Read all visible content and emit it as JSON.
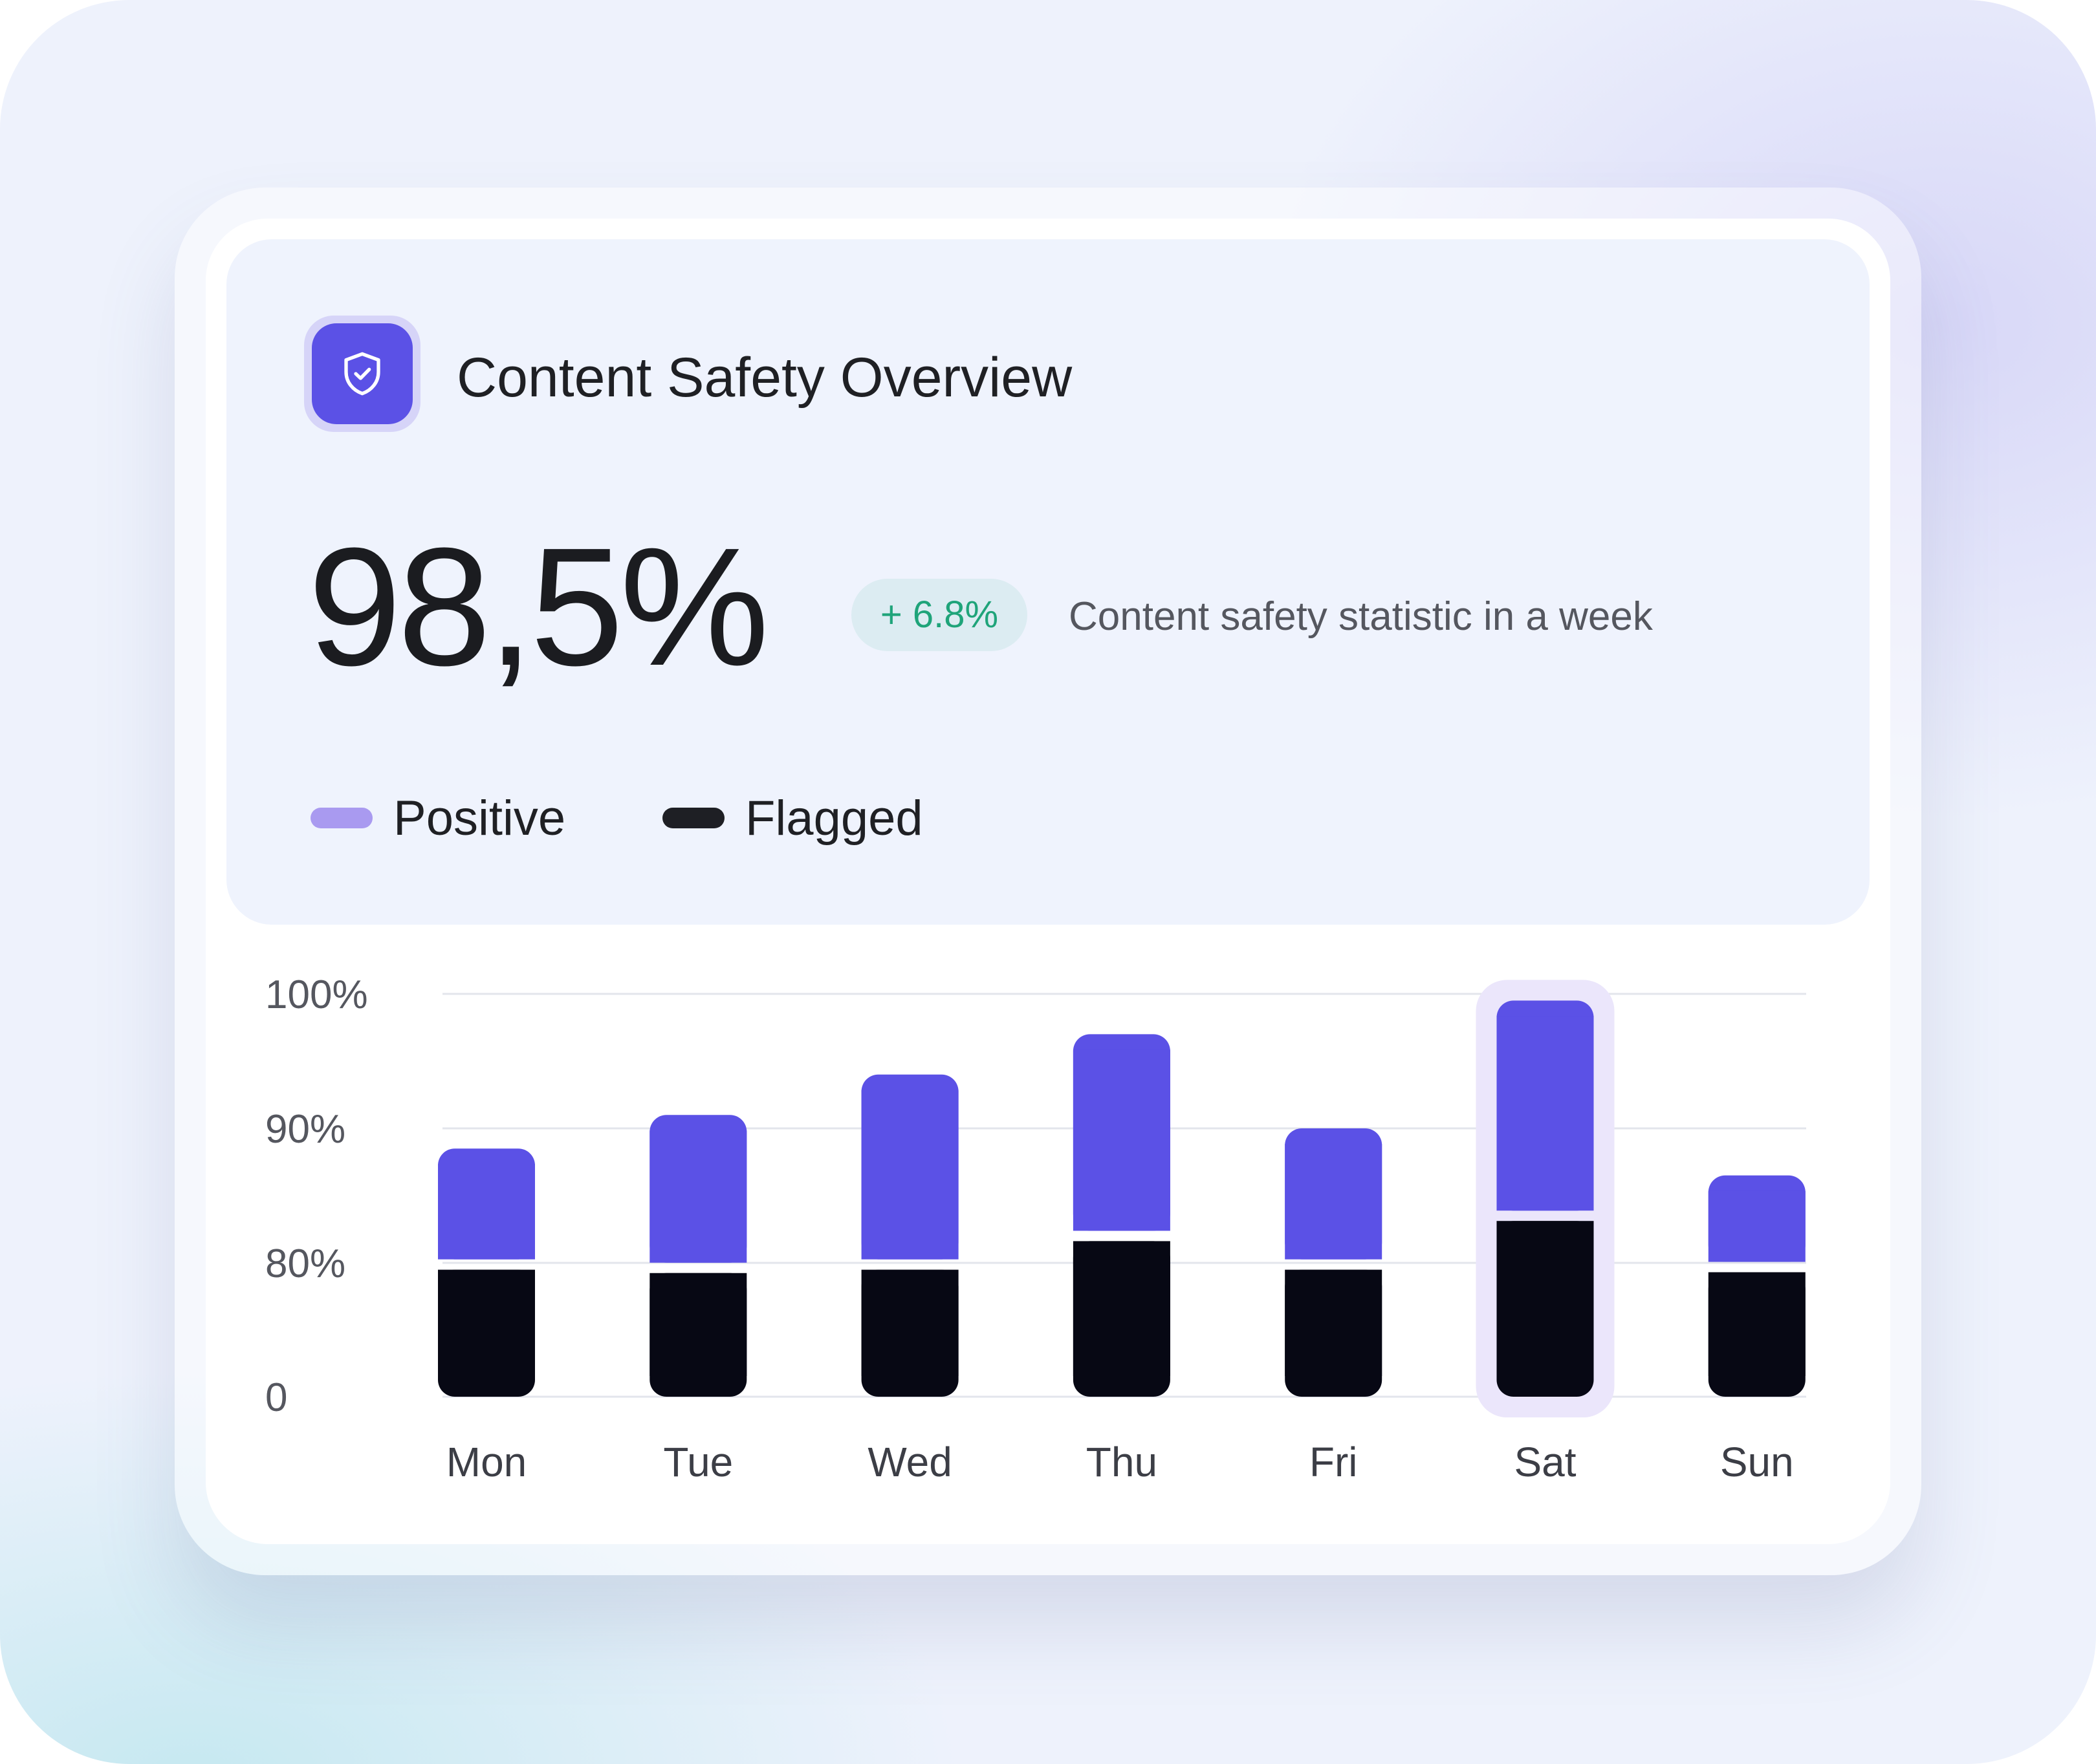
{
  "header": {
    "icon": "shield-check-icon",
    "title": "Content Safety Overview"
  },
  "summary": {
    "value": "98,5%",
    "delta": "+ 6.8%",
    "caption": "Content safety statistic in a week"
  },
  "legend": [
    {
      "label": "Positive",
      "color": "#a99af0"
    },
    {
      "label": "Flagged",
      "color": "#1e1f24"
    }
  ],
  "colors": {
    "positive_bar": "#5b51e6",
    "flagged_bar": "#070814",
    "highlight": "#ebe6fb",
    "accent": "#5b51e6",
    "delta_text": "#1fa47a"
  },
  "chart_data": {
    "type": "bar",
    "stacked": true,
    "title": "",
    "xlabel": "",
    "ylabel": "",
    "y_ticks": [
      "100%",
      "90%",
      "80%",
      "0"
    ],
    "categories": [
      "Mon",
      "Tue",
      "Wed",
      "Thu",
      "Fri",
      "Sat",
      "Sun"
    ],
    "series": [
      {
        "name": "Flagged",
        "values": [
          79,
          77,
          79,
          82,
          79,
          83.5,
          77.5
        ]
      },
      {
        "name": "Positive",
        "values": [
          9.5,
          14,
          15,
          15,
          11,
          16,
          9
        ]
      }
    ],
    "totals": [
      88.5,
      91,
      94,
      97,
      90,
      99.5,
      86.5
    ],
    "highlighted": "Sat",
    "grid": true
  }
}
